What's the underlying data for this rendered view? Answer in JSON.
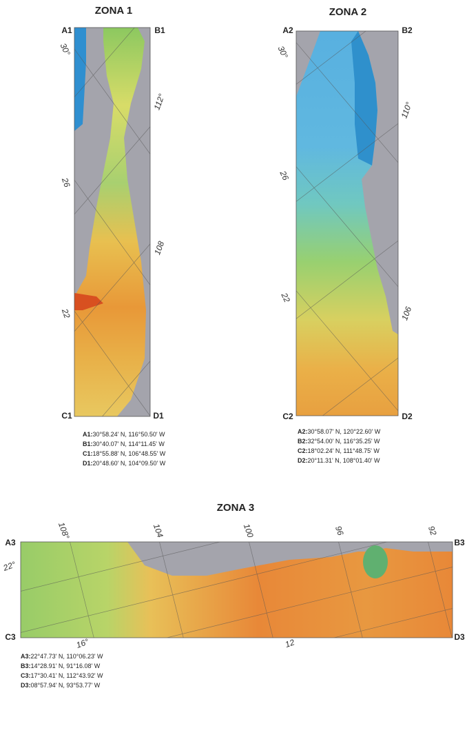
{
  "panels": [
    {
      "title": "ZONA 1",
      "corners": [
        "A1",
        "B1",
        "C1",
        "D1"
      ],
      "grid_labels": [
        "30°",
        "112°",
        "26",
        "108",
        "22"
      ],
      "coordinates": [
        {
          "point": "A1:",
          "text": "30°58.24' N, 116°50.50' W"
        },
        {
          "point": "B1:",
          "text": "30°40.07' N, 114°11.45' W"
        },
        {
          "point": "C1:",
          "text": "18°55.88' N, 106°48.55' W"
        },
        {
          "point": "D1:",
          "text": "20°48.60' N, 104°09.50' W"
        }
      ]
    },
    {
      "title": "ZONA 2",
      "corners": [
        "A2",
        "B2",
        "C2",
        "D2"
      ],
      "grid_labels": [
        "30°",
        "110°",
        "26",
        "22",
        "106"
      ],
      "coordinates": [
        {
          "point": "A2:",
          "text": "30°58.07' N, 120°22.60' W"
        },
        {
          "point": "B2:",
          "text": "32°54.00' N, 116°35.25' W"
        },
        {
          "point": "C2:",
          "text": "18°02.24' N, 111°48.75' W"
        },
        {
          "point": "D2:",
          "text": "20°11.31' N, 108°01.40' W"
        }
      ]
    },
    {
      "title": "ZONA 3",
      "corners": [
        "A3",
        "B3",
        "C3",
        "D3"
      ],
      "grid_labels": [
        "108°",
        "104",
        "100",
        "96",
        "92",
        "22°",
        "16°",
        "12"
      ],
      "coordinates": [
        {
          "point": "A3:",
          "text": "22°47.73' N, 110°06.23' W"
        },
        {
          "point": "B3:",
          "text": "14°28.91' N, 91°16.08' W"
        },
        {
          "point": "C3:",
          "text": "17°30.41' N, 112°43.92' W"
        },
        {
          "point": "D3:",
          "text": "08°57.94' N, 93°53.77' W"
        }
      ]
    }
  ]
}
